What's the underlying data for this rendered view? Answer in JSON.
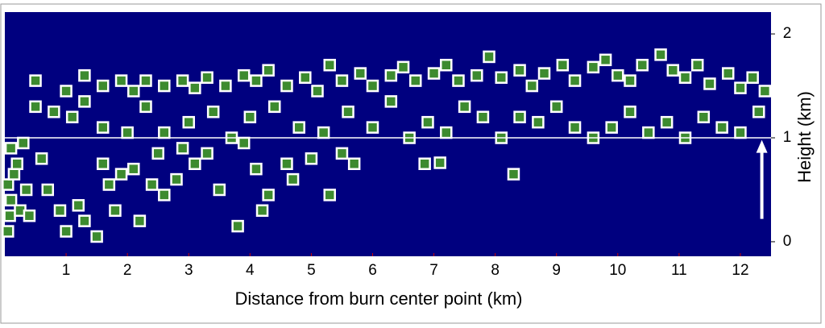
{
  "chart_data": {
    "type": "scatter",
    "x_label": "Distance from burn center point (km)",
    "y_label": "Height (km)",
    "xlim": [
      0,
      12.5
    ],
    "ylim": [
      -0.14,
      2.21
    ],
    "xticks": [
      1,
      2,
      3,
      4,
      5,
      6,
      7,
      8,
      9,
      10,
      11,
      12
    ],
    "yticks": [
      0,
      1,
      2
    ],
    "color": "#3d8b2f",
    "background": "#00007f",
    "reference_line": 1,
    "arrow": {
      "x": 12.35,
      "y": [
        0.22,
        0.98
      ]
    },
    "x": [
      0.05,
      0.08,
      0.1,
      0.05,
      0.15,
      0.2,
      0.1,
      0.25,
      0.35,
      0.4,
      0.3,
      0.6,
      0.7,
      0.9,
      1.0,
      1.2,
      1.3,
      1.5,
      1.6,
      1.7,
      1.8,
      1.9,
      2.1,
      2.2,
      2.4,
      2.5,
      2.6,
      2.8,
      2.9,
      3.1,
      3.3,
      3.5,
      3.8,
      3.9,
      4.1,
      4.2,
      4.3,
      4.6,
      4.7,
      5.0,
      5.3,
      5.5,
      5.7,
      6.85,
      7.1,
      8.3,
      0.5,
      0.8,
      1.1,
      1.3,
      1.6,
      2.0,
      2.3,
      2.6,
      3.0,
      3.4,
      3.7,
      4.0,
      4.4,
      4.8,
      5.2,
      5.6,
      6.0,
      6.3,
      6.6,
      6.9,
      7.2,
      7.5,
      7.8,
      8.1,
      8.4,
      8.7,
      9.0,
      9.3,
      9.6,
      9.9,
      10.2,
      10.5,
      10.8,
      11.1,
      11.4,
      11.7,
      12.0,
      12.3,
      0.5,
      1.0,
      1.3,
      1.6,
      1.9,
      2.1,
      2.3,
      2.6,
      2.9,
      3.1,
      3.3,
      3.6,
      3.9,
      4.1,
      4.3,
      4.6,
      4.9,
      5.1,
      5.3,
      5.5,
      5.8,
      6.0,
      6.3,
      6.5,
      6.7,
      7.0,
      7.2,
      7.4,
      7.7,
      7.9,
      8.1,
      8.4,
      8.6,
      8.8,
      9.1,
      9.3,
      9.6,
      9.8,
      10.0,
      10.2,
      10.4,
      10.7,
      10.9,
      11.1,
      11.3,
      11.5,
      11.8,
      12.0,
      12.2,
      12.4
    ],
    "values": [
      0.1,
      0.25,
      0.4,
      0.55,
      0.65,
      0.75,
      0.9,
      0.3,
      0.5,
      0.25,
      0.95,
      0.8,
      0.5,
      0.3,
      0.1,
      0.35,
      0.2,
      0.05,
      0.75,
      0.55,
      0.3,
      0.65,
      0.7,
      0.2,
      0.55,
      0.85,
      0.45,
      0.6,
      0.9,
      0.75,
      0.85,
      0.5,
      0.15,
      0.95,
      0.7,
      0.3,
      0.45,
      0.75,
      0.6,
      0.8,
      0.45,
      0.85,
      0.75,
      0.75,
      0.76,
      0.65,
      1.3,
      1.25,
      1.2,
      1.35,
      1.1,
      1.05,
      1.3,
      1.05,
      1.15,
      1.25,
      1.0,
      1.2,
      1.3,
      1.1,
      1.05,
      1.25,
      1.1,
      1.35,
      1.0,
      1.15,
      1.05,
      1.3,
      1.2,
      1.0,
      1.2,
      1.15,
      1.3,
      1.1,
      1.0,
      1.1,
      1.25,
      1.05,
      1.15,
      1.0,
      1.2,
      1.1,
      1.05,
      1.25,
      1.55,
      1.45,
      1.6,
      1.5,
      1.55,
      1.45,
      1.55,
      1.5,
      1.55,
      1.48,
      1.58,
      1.5,
      1.6,
      1.55,
      1.65,
      1.5,
      1.58,
      1.45,
      1.7,
      1.55,
      1.62,
      1.5,
      1.6,
      1.68,
      1.55,
      1.62,
      1.7,
      1.55,
      1.6,
      1.78,
      1.58,
      1.65,
      1.5,
      1.62,
      1.7,
      1.55,
      1.68,
      1.75,
      1.6,
      1.55,
      1.7,
      1.8,
      1.65,
      1.58,
      1.7,
      1.52,
      1.62,
      1.48,
      1.58,
      1.45
    ]
  }
}
